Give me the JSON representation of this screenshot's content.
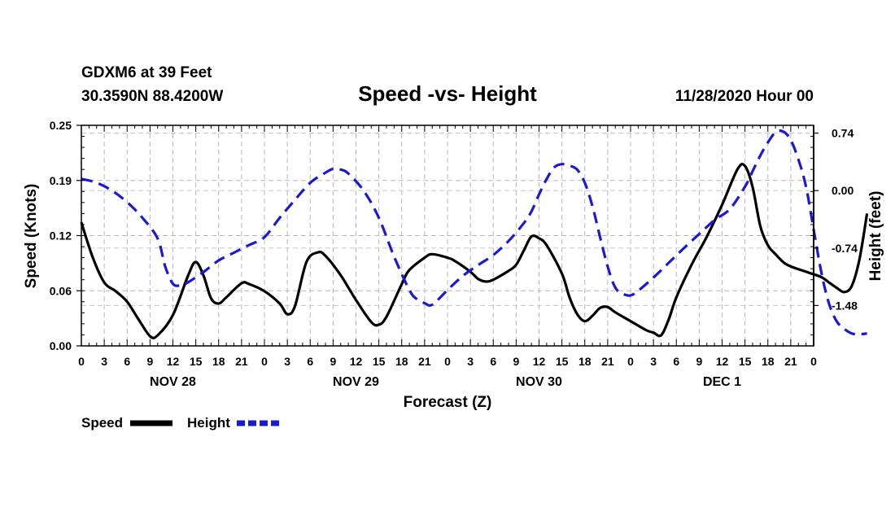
{
  "header": {
    "station": "GDXM6 at 39 Feet",
    "location": "30.3590N 88.4200W",
    "datetime": "11/28/2020 Hour 00"
  },
  "chart_data": {
    "type": "line",
    "title": "Speed -vs- Height",
    "xlabel": "Forecast (Z)",
    "ylabel_left": "Speed (Knots)",
    "ylabel_right": "Height (feet)",
    "x_range_hours": [
      0,
      96
    ],
    "hour_ticks": [
      "0",
      "3",
      "6",
      "9",
      "12",
      "15",
      "18",
      "21",
      "0",
      "3",
      "6",
      "9",
      "12",
      "15",
      "18",
      "21",
      "0",
      "3",
      "6",
      "9",
      "12",
      "15",
      "18",
      "21",
      "0",
      "3",
      "6",
      "9",
      "12",
      "15",
      "18",
      "21",
      "0"
    ],
    "day_labels": [
      {
        "label": "NOV 28",
        "center_hour": 12
      },
      {
        "label": "NOV 29",
        "center_hour": 36
      },
      {
        "label": "NOV 30",
        "center_hour": 60
      },
      {
        "label": "DEC 1",
        "center_hour": 84
      }
    ],
    "left_axis": {
      "range": [
        0.0,
        0.25
      ],
      "ticks": [
        "0.00",
        "0.06",
        "0.12",
        "0.19",
        "0.25"
      ],
      "tick_values": [
        0.0,
        0.0625,
        0.125,
        0.1875,
        0.25
      ]
    },
    "right_axis": {
      "range": [
        -2.0,
        0.84
      ],
      "ticks": [
        "0.74",
        "0.00",
        "-0.74",
        "-1.48"
      ],
      "tick_values": [
        0.74,
        0.0,
        -0.74,
        -1.48
      ]
    },
    "grid": true,
    "series": [
      {
        "name": "Speed",
        "axis": "left",
        "color": "#000000",
        "dash": "solid",
        "points": [
          [
            0,
            0.14
          ],
          [
            1.5,
            0.1
          ],
          [
            3,
            0.072
          ],
          [
            4.5,
            0.062
          ],
          [
            6,
            0.05
          ],
          [
            7.5,
            0.03
          ],
          [
            9,
            0.011
          ],
          [
            10,
            0.012
          ],
          [
            12,
            0.035
          ],
          [
            14,
            0.08
          ],
          [
            15,
            0.095
          ],
          [
            16,
            0.08
          ],
          [
            17,
            0.054
          ],
          [
            18,
            0.048
          ],
          [
            19,
            0.055
          ],
          [
            21,
            0.071
          ],
          [
            22,
            0.07
          ],
          [
            24,
            0.062
          ],
          [
            26,
            0.048
          ],
          [
            27,
            0.036
          ],
          [
            28,
            0.045
          ],
          [
            29.5,
            0.095
          ],
          [
            31,
            0.106
          ],
          [
            32,
            0.102
          ],
          [
            34,
            0.08
          ],
          [
            36,
            0.052
          ],
          [
            38,
            0.027
          ],
          [
            39,
            0.024
          ],
          [
            40,
            0.033
          ],
          [
            42,
            0.07
          ],
          [
            43,
            0.086
          ],
          [
            45,
            0.1
          ],
          [
            46,
            0.104
          ],
          [
            48,
            0.1
          ],
          [
            49,
            0.096
          ],
          [
            51,
            0.084
          ],
          [
            52,
            0.076
          ],
          [
            53,
            0.073
          ],
          [
            54,
            0.075
          ],
          [
            56,
            0.085
          ],
          [
            57,
            0.092
          ],
          [
            58,
            0.108
          ],
          [
            59,
            0.124
          ],
          [
            60,
            0.122
          ],
          [
            61,
            0.114
          ],
          [
            63,
            0.082
          ],
          [
            64,
            0.055
          ],
          [
            65,
            0.036
          ],
          [
            66,
            0.028
          ],
          [
            67,
            0.034
          ],
          [
            68,
            0.043
          ],
          [
            69,
            0.044
          ],
          [
            70,
            0.038
          ],
          [
            72,
            0.028
          ],
          [
            74,
            0.018
          ],
          [
            75,
            0.015
          ],
          [
            76,
            0.012
          ],
          [
            77,
            0.03
          ],
          [
            78,
            0.055
          ],
          [
            80,
            0.092
          ],
          [
            82,
            0.124
          ],
          [
            84,
            0.16
          ],
          [
            86,
            0.2
          ],
          [
            87,
            0.204
          ],
          [
            88,
            0.18
          ],
          [
            89,
            0.136
          ],
          [
            90,
            0.114
          ],
          [
            91,
            0.104
          ],
          [
            92,
            0.095
          ],
          [
            93,
            0.09
          ],
          [
            95,
            0.084
          ],
          [
            97,
            0.078
          ],
          [
            98,
            0.072
          ],
          [
            99,
            0.066
          ],
          [
            100,
            0.061
          ],
          [
            101,
            0.068
          ],
          [
            102,
            0.098
          ],
          [
            103,
            0.15
          ]
        ]
      },
      {
        "name": "Height",
        "axis": "right",
        "color": "#1a1ad6",
        "dash": "dashed",
        "points": [
          [
            0,
            0.15
          ],
          [
            2,
            0.1
          ],
          [
            4,
            0.0
          ],
          [
            6,
            -0.15
          ],
          [
            8,
            -0.35
          ],
          [
            10,
            -0.62
          ],
          [
            11,
            -0.98
          ],
          [
            12,
            -1.2
          ],
          [
            13,
            -1.22
          ],
          [
            14,
            -1.18
          ],
          [
            16,
            -1.05
          ],
          [
            18,
            -0.9
          ],
          [
            20,
            -0.8
          ],
          [
            22,
            -0.7
          ],
          [
            24,
            -0.6
          ],
          [
            26,
            -0.35
          ],
          [
            28,
            -0.12
          ],
          [
            30,
            0.1
          ],
          [
            32,
            0.23
          ],
          [
            33,
            0.28
          ],
          [
            34,
            0.27
          ],
          [
            35,
            0.22
          ],
          [
            37,
            0.0
          ],
          [
            39,
            -0.35
          ],
          [
            41,
            -0.85
          ],
          [
            43,
            -1.28
          ],
          [
            44,
            -1.4
          ],
          [
            45,
            -1.45
          ],
          [
            46,
            -1.47
          ],
          [
            48,
            -1.28
          ],
          [
            50,
            -1.1
          ],
          [
            52,
            -0.96
          ],
          [
            54,
            -0.83
          ],
          [
            56,
            -0.65
          ],
          [
            58,
            -0.42
          ],
          [
            59,
            -0.27
          ],
          [
            60,
            -0.05
          ],
          [
            61,
            0.15
          ],
          [
            62,
            0.3
          ],
          [
            63,
            0.34
          ],
          [
            64,
            0.32
          ],
          [
            65,
            0.27
          ],
          [
            66,
            0.1
          ],
          [
            67,
            -0.2
          ],
          [
            68,
            -0.6
          ],
          [
            69,
            -0.98
          ],
          [
            70,
            -1.25
          ],
          [
            71,
            -1.33
          ],
          [
            72,
            -1.35
          ],
          [
            73,
            -1.29
          ],
          [
            75,
            -1.12
          ],
          [
            77,
            -0.93
          ],
          [
            79,
            -0.74
          ],
          [
            81,
            -0.56
          ],
          [
            83,
            -0.38
          ],
          [
            85,
            -0.24
          ],
          [
            87,
            0.05
          ],
          [
            88,
            0.25
          ],
          [
            89,
            0.45
          ],
          [
            90,
            0.62
          ],
          [
            91,
            0.75
          ],
          [
            92,
            0.76
          ],
          [
            93,
            0.65
          ],
          [
            94,
            0.4
          ],
          [
            95,
            0.05
          ],
          [
            96,
            -0.5
          ],
          [
            97,
            -1.05
          ],
          [
            98,
            -1.45
          ],
          [
            99,
            -1.68
          ],
          [
            100,
            -1.78
          ],
          [
            101,
            -1.84
          ],
          [
            102,
            -1.85
          ],
          [
            103,
            -1.84
          ]
        ]
      }
    ],
    "legend": [
      {
        "name": "Speed",
        "color": "#000000",
        "dash": "solid"
      },
      {
        "name": "Height",
        "color": "#1a1ad6",
        "dash": "dashed"
      }
    ],
    "legend_placement": "bottom-left"
  }
}
